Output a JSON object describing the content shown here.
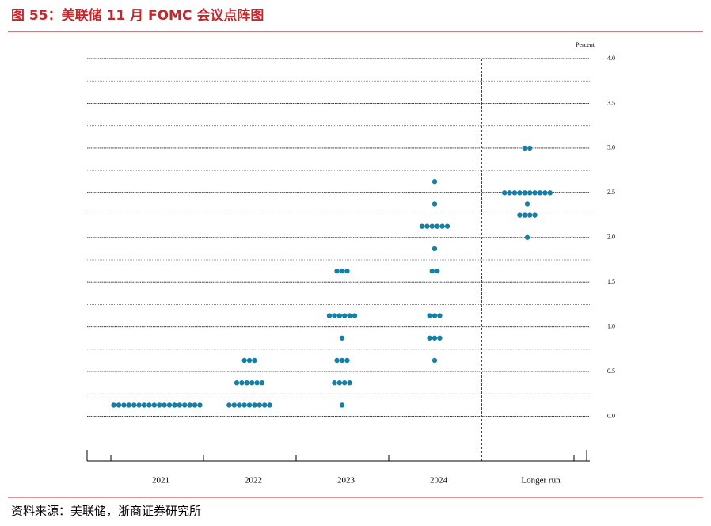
{
  "title": "图 55：美联储 11 月 FOMC 会议点阵图",
  "source": "资料来源：美联储，浙商证券研究所",
  "chart_data": {
    "type": "dot",
    "y_axis_label": "Percent",
    "categories": [
      "2021",
      "2022",
      "2023",
      "2024",
      "Longer run"
    ],
    "color": "#1580a6",
    "values": [
      [
        0.125,
        0.125,
        0.125,
        0.125,
        0.125,
        0.125,
        0.125,
        0.125,
        0.125,
        0.125,
        0.125,
        0.125,
        0.125,
        0.125,
        0.125,
        0.125,
        0.125,
        0.125
      ],
      [
        0.625,
        0.625,
        0.625,
        0.375,
        0.375,
        0.375,
        0.375,
        0.375,
        0.375,
        0.125,
        0.125,
        0.125,
        0.125,
        0.125,
        0.125,
        0.125,
        0.125,
        0.125
      ],
      [
        1.625,
        1.625,
        1.625,
        1.125,
        1.125,
        1.125,
        1.125,
        1.125,
        1.125,
        0.875,
        0.625,
        0.625,
        0.625,
        0.375,
        0.375,
        0.375,
        0.375,
        0.125
      ],
      [
        2.625,
        2.375,
        2.125,
        2.125,
        2.125,
        2.125,
        2.125,
        2.125,
        1.875,
        1.625,
        1.625,
        1.125,
        1.125,
        1.125,
        0.875,
        0.875,
        0.875,
        0.625
      ],
      [
        3.0,
        3.0,
        2.5,
        2.5,
        2.5,
        2.5,
        2.5,
        2.5,
        2.5,
        2.5,
        2.5,
        2.5,
        2.375,
        2.25,
        2.25,
        2.25,
        2.25,
        2.0
      ]
    ],
    "ylim": [
      -0.5,
      4.0
    ],
    "yticks": [
      {
        "value": 0,
        "label": "0.0"
      },
      {
        "value": 0.5,
        "label": "0.5"
      },
      {
        "value": 1,
        "label": "1.0"
      },
      {
        "value": 1.5,
        "label": "1.5"
      },
      {
        "value": 2,
        "label": "2.0"
      },
      {
        "value": 2.5,
        "label": "2.5"
      },
      {
        "value": 3,
        "label": "3.0"
      },
      {
        "value": 3.5,
        "label": "3.5"
      },
      {
        "value": 4,
        "label": "4.0"
      }
    ],
    "minor_yticks": [
      0.25,
      0.75,
      1.25,
      1.75,
      2.25,
      2.75,
      3.25,
      3.75
    ],
    "grid": true
  }
}
